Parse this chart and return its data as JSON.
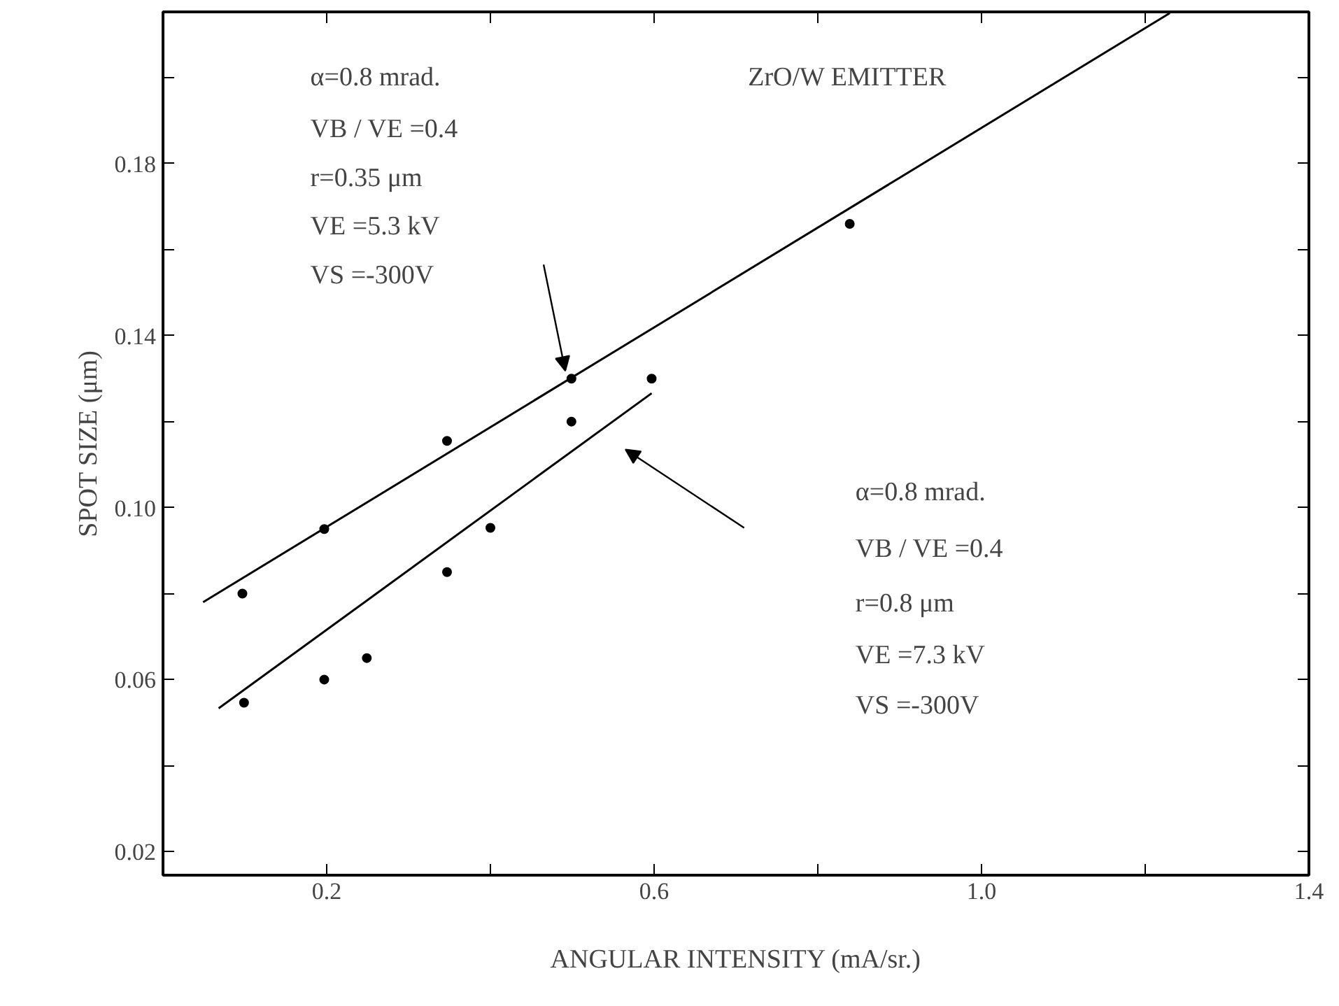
{
  "chart_data": {
    "type": "scatter",
    "title": "ZrO/W EMITTER",
    "xlabel": "ANGULAR INTENSITY (mA/sr.)",
    "ylabel": "SPOT SIZE (μm)",
    "series": [
      {
        "color": "#000000",
        "marker": "circle",
        "x": [
          0.097,
          0.197,
          0.347,
          0.499,
          0.839
        ],
        "values": [
          0.08,
          0.095,
          0.1155,
          0.13,
          0.166
        ]
      },
      {
        "color": "#000000",
        "marker": "circle",
        "x": [
          0.099,
          0.197,
          0.249,
          0.347,
          0.4,
          0.499,
          0.597
        ],
        "values": [
          0.0546,
          0.06,
          0.065,
          0.085,
          0.0953,
          0.12,
          0.13
        ]
      },
      {
        "type": "line",
        "color": "#000000",
        "x": [
          0.049,
          1.23
        ],
        "values": [
          0.078,
          0.215
        ]
      },
      {
        "type": "line",
        "color": "#000000",
        "x": [
          0.068,
          0.597
        ],
        "values": [
          0.0533,
          0.1266
        ]
      }
    ],
    "line_style": "solid",
    "grid": false,
    "xlim": [
      0.0,
      1.4
    ],
    "ylim": [
      0.0145,
      0.2153
    ],
    "xticks": [
      0.2,
      {
        "value": 0.4,
        "label": null
      },
      0.6,
      {
        "value": 0.8,
        "label": null
      },
      {
        "value": 1.0,
        "label": "1.0"
      },
      {
        "value": 1.2,
        "label": null
      },
      1.4
    ],
    "yticks": [
      0.02,
      {
        "value": 0.04,
        "label": null
      },
      0.06,
      {
        "value": 0.08,
        "label": null
      },
      {
        "value": 0.1,
        "label": "0.10"
      },
      {
        "value": 0.12,
        "label": null
      },
      0.14,
      {
        "value": 0.16,
        "label": null
      },
      0.18,
      {
        "value": 0.2,
        "label": null
      }
    ],
    "annotations": [
      "α=0.8 mrad.",
      "VB / VE =0.4",
      "r=0.35 μm",
      "VE =5.3 kV",
      "VS =-300V",
      "α=0.8 mrad.",
      "VB / VE =0.4",
      "r=0.8 μm",
      "VE =7.3 kV",
      "VS =-300V"
    ]
  }
}
